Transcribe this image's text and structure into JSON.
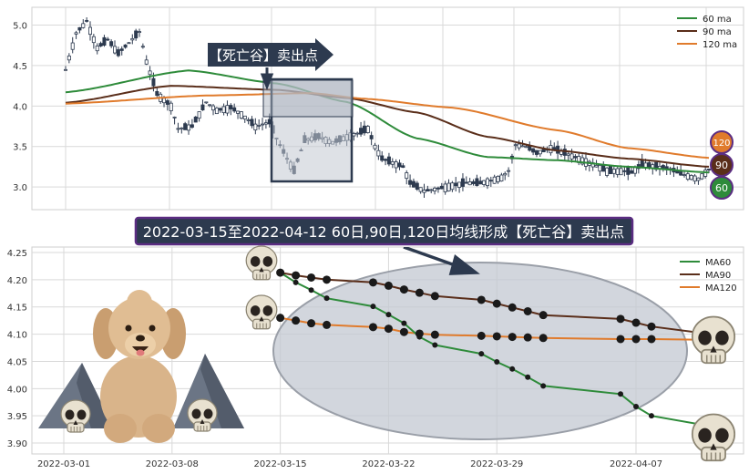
{
  "colors": {
    "ma60": "#2e8b3a",
    "ma90": "#5a2e1a",
    "ma120": "#e07b2c",
    "candle": "#2d3a4f",
    "banner_bg": "#2d3a4f",
    "banner_border": "#5b2d82",
    "grid": "#d9d9d9",
    "shade": "#c3c8d2"
  },
  "top_arrow_label": "【死亡谷】卖出点",
  "banner_text": "2022-03-15至2022-04-12 60日,90日,120日均线形成【死亡谷】卖出点",
  "chart_data": [
    {
      "type": "line",
      "title": "",
      "y_ticks": [
        "3.0",
        "3.5",
        "4.0",
        "4.5",
        "5.0"
      ],
      "ylim": [
        2.72,
        5.22
      ],
      "grid": true,
      "legend_position": "top-right",
      "legend": [
        "60 ma",
        "90 ma",
        "120 ma"
      ],
      "badges": [
        "120",
        "90",
        "60"
      ],
      "candle_anchors": [
        [
          0,
          4.45
        ],
        [
          3,
          4.9
        ],
        [
          6,
          5.05
        ],
        [
          9,
          4.72
        ],
        [
          12,
          4.82
        ],
        [
          15,
          4.65
        ],
        [
          18,
          4.78
        ],
        [
          21,
          4.92
        ],
        [
          23,
          4.55
        ],
        [
          26,
          4.15
        ],
        [
          30,
          4.0
        ],
        [
          32,
          3.72
        ],
        [
          36,
          3.75
        ],
        [
          40,
          4.05
        ],
        [
          43,
          3.95
        ],
        [
          47,
          3.98
        ],
        [
          50,
          3.9
        ],
        [
          54,
          3.75
        ],
        [
          58,
          3.8
        ],
        [
          60,
          3.6
        ],
        [
          63,
          3.35
        ],
        [
          65,
          3.2
        ],
        [
          68,
          3.58
        ],
        [
          72,
          3.62
        ],
        [
          76,
          3.55
        ],
        [
          80,
          3.62
        ],
        [
          84,
          3.68
        ],
        [
          86,
          3.72
        ],
        [
          88,
          3.5
        ],
        [
          90,
          3.35
        ],
        [
          93,
          3.3
        ],
        [
          96,
          3.25
        ],
        [
          98,
          3.05
        ],
        [
          102,
          2.95
        ],
        [
          106,
          2.98
        ],
        [
          110,
          3.02
        ],
        [
          114,
          3.05
        ],
        [
          118,
          3.05
        ],
        [
          121,
          3.08
        ],
        [
          124,
          3.12
        ],
        [
          126,
          3.2
        ],
        [
          128,
          3.52
        ],
        [
          131,
          3.5
        ],
        [
          134,
          3.42
        ],
        [
          138,
          3.48
        ],
        [
          142,
          3.42
        ],
        [
          146,
          3.35
        ],
        [
          150,
          3.28
        ],
        [
          154,
          3.2
        ],
        [
          158,
          3.2
        ],
        [
          161,
          3.18
        ],
        [
          164,
          3.28
        ],
        [
          168,
          3.25
        ],
        [
          172,
          3.22
        ],
        [
          176,
          3.15
        ],
        [
          180,
          3.1
        ],
        [
          183,
          3.22
        ]
      ],
      "series": [
        {
          "name": "60 ma",
          "points": [
            [
              0,
              4.17
            ],
            [
              35,
              4.44
            ],
            [
              60,
              4.28
            ],
            [
              80,
              4.05
            ],
            [
              100,
              3.6
            ],
            [
              120,
              3.37
            ],
            [
              140,
              3.33
            ],
            [
              160,
              3.25
            ],
            [
              183,
              3.18
            ]
          ]
        },
        {
          "name": "90 ma",
          "points": [
            [
              0,
              4.04
            ],
            [
              30,
              4.25
            ],
            [
              60,
              4.2
            ],
            [
              80,
              4.1
            ],
            [
              100,
              3.92
            ],
            [
              120,
              3.62
            ],
            [
              140,
              3.45
            ],
            [
              160,
              3.35
            ],
            [
              183,
              3.25
            ]
          ]
        },
        {
          "name": "120 ma",
          "points": [
            [
              0,
              4.03
            ],
            [
              40,
              4.13
            ],
            [
              70,
              4.16
            ],
            [
              85,
              4.09
            ],
            [
              110,
              3.98
            ],
            [
              140,
              3.7
            ],
            [
              160,
              3.48
            ],
            [
              183,
              3.36
            ]
          ]
        }
      ]
    },
    {
      "type": "line",
      "title": "",
      "x_ticks": [
        "2022-03-01",
        "2022-03-08",
        "2022-03-15",
        "2022-03-22",
        "2022-03-29",
        "2022-04-07"
      ],
      "y_ticks": [
        "3.90",
        "3.95",
        "4.00",
        "4.05",
        "4.10",
        "4.15",
        "4.20",
        "4.25"
      ],
      "ylim": [
        3.88,
        4.26
      ],
      "grid": true,
      "legend_position": "top-right",
      "legend": [
        "MA60",
        "MA90",
        "MA120"
      ],
      "dates": [
        "2022-03-15",
        "2022-03-16",
        "2022-03-17",
        "2022-03-18",
        "2022-03-21",
        "2022-03-22",
        "2022-03-23",
        "2022-03-24",
        "2022-03-25",
        "2022-03-28",
        "2022-03-29",
        "2022-03-30",
        "2022-03-31",
        "2022-04-01",
        "2022-04-06",
        "2022-04-07",
        "2022-04-08",
        "2022-04-11",
        "2022-04-12"
      ],
      "series": [
        {
          "name": "MA60",
          "values": [
            4.213,
            4.195,
            4.181,
            4.166,
            4.151,
            4.136,
            4.12,
            4.095,
            4.08,
            4.064,
            4.049,
            4.036,
            4.021,
            4.005,
            3.99,
            3.967,
            3.95,
            3.935,
            3.916
          ]
        },
        {
          "name": "MA90",
          "values": [
            4.213,
            4.208,
            4.204,
            4.2,
            4.195,
            4.189,
            4.182,
            4.176,
            4.17,
            4.163,
            4.156,
            4.149,
            4.142,
            4.135,
            4.128,
            4.121,
            4.114,
            4.103,
            4.09
          ]
        },
        {
          "name": "MA120",
          "values": [
            4.13,
            4.125,
            4.12,
            4.117,
            4.113,
            4.11,
            4.104,
            4.101,
            4.099,
            4.097,
            4.096,
            4.095,
            4.094,
            4.093,
            4.091,
            4.091,
            4.091,
            4.09,
            4.089
          ]
        }
      ]
    }
  ]
}
